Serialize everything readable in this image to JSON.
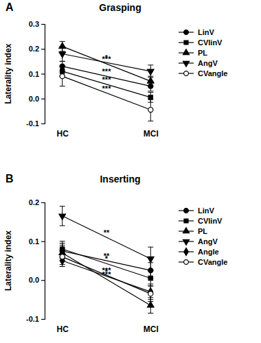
{
  "chart_data": [
    {
      "type": "line",
      "title": "Grasping",
      "annotations": [
        {
          "text": "A"
        }
      ],
      "y_label": "Laterality index",
      "categories": [
        "HC",
        "MCI"
      ],
      "ylim": [
        -0.1,
        0.3
      ],
      "yticks": [
        -0.1,
        {
          "value": 0,
          "label": "0.0"
        },
        0.1,
        0.2,
        0.3
      ],
      "legend": "right",
      "series": [
        {
          "name": "LinV",
          "color": "#000000",
          "marker": "circle",
          "values": [
            0.13,
            0.05
          ],
          "errors": [
            0.02,
            0.02
          ],
          "significance": "***"
        },
        {
          "name": "CVlinV",
          "color": "#000000",
          "marker": "square",
          "values": [
            0.11,
            0.005
          ],
          "errors": [
            0.02,
            0.02
          ],
          "significance": "***"
        },
        {
          "name": "PL",
          "color": "#000000",
          "marker": "triangle",
          "values": [
            0.21,
            0.07
          ],
          "errors": [
            0.02,
            0.02
          ],
          "significance": "***"
        },
        {
          "name": "AngV",
          "color": "#000000",
          "marker": "triangle-down",
          "values": [
            0.18,
            0.11
          ],
          "errors": [
            0.03,
            0.025
          ],
          "significance": "*"
        },
        {
          "name": "CVangle",
          "color": "#000000",
          "marker": "circle-open",
          "values": [
            0.09,
            -0.045
          ],
          "errors": [
            0.04,
            0.045
          ],
          "significance": "***"
        }
      ]
    },
    {
      "type": "line",
      "title": "Inserting",
      "annotations": [
        {
          "text": "B"
        }
      ],
      "y_label": "Laterality index",
      "categories": [
        "HC",
        "MCI"
      ],
      "ylim": [
        -0.1,
        0.2
      ],
      "yticks": [
        -0.1,
        {
          "value": 0,
          "label": "0.0"
        },
        0.1,
        0.2
      ],
      "legend": "right",
      "series": [
        {
          "name": "LinV",
          "color": "#000000",
          "marker": "circle",
          "values": [
            0.075,
            0.025
          ],
          "errors": [
            0.02,
            0.02
          ],
          "significance": "**"
        },
        {
          "name": "CVlinV",
          "color": "#000000",
          "marker": "square",
          "values": [
            0.08,
            0.005
          ],
          "errors": [
            0.02,
            0.02
          ],
          "significance": "*"
        },
        {
          "name": "PL",
          "color": "#000000",
          "marker": "triangle",
          "values": [
            0.07,
            -0.065
          ],
          "errors": [
            0.02,
            0.02
          ],
          "significance": "***"
        },
        {
          "name": "AngV",
          "color": "#000000",
          "marker": "triangle-down",
          "values": [
            0.165,
            0.055
          ],
          "errors": [
            0.025,
            0.03
          ],
          "significance": "**"
        },
        {
          "name": "Angle",
          "color": "#000000",
          "marker": "diamond",
          "values": [
            0.05,
            -0.03
          ],
          "errors": [
            0.015,
            0.02
          ],
          "significance": "*"
        },
        {
          "name": "CVangle",
          "color": "#000000",
          "marker": "circle-open",
          "values": [
            0.06,
            -0.035
          ],
          "errors": [
            0.02,
            0.02
          ],
          "significance": "***"
        }
      ]
    }
  ]
}
